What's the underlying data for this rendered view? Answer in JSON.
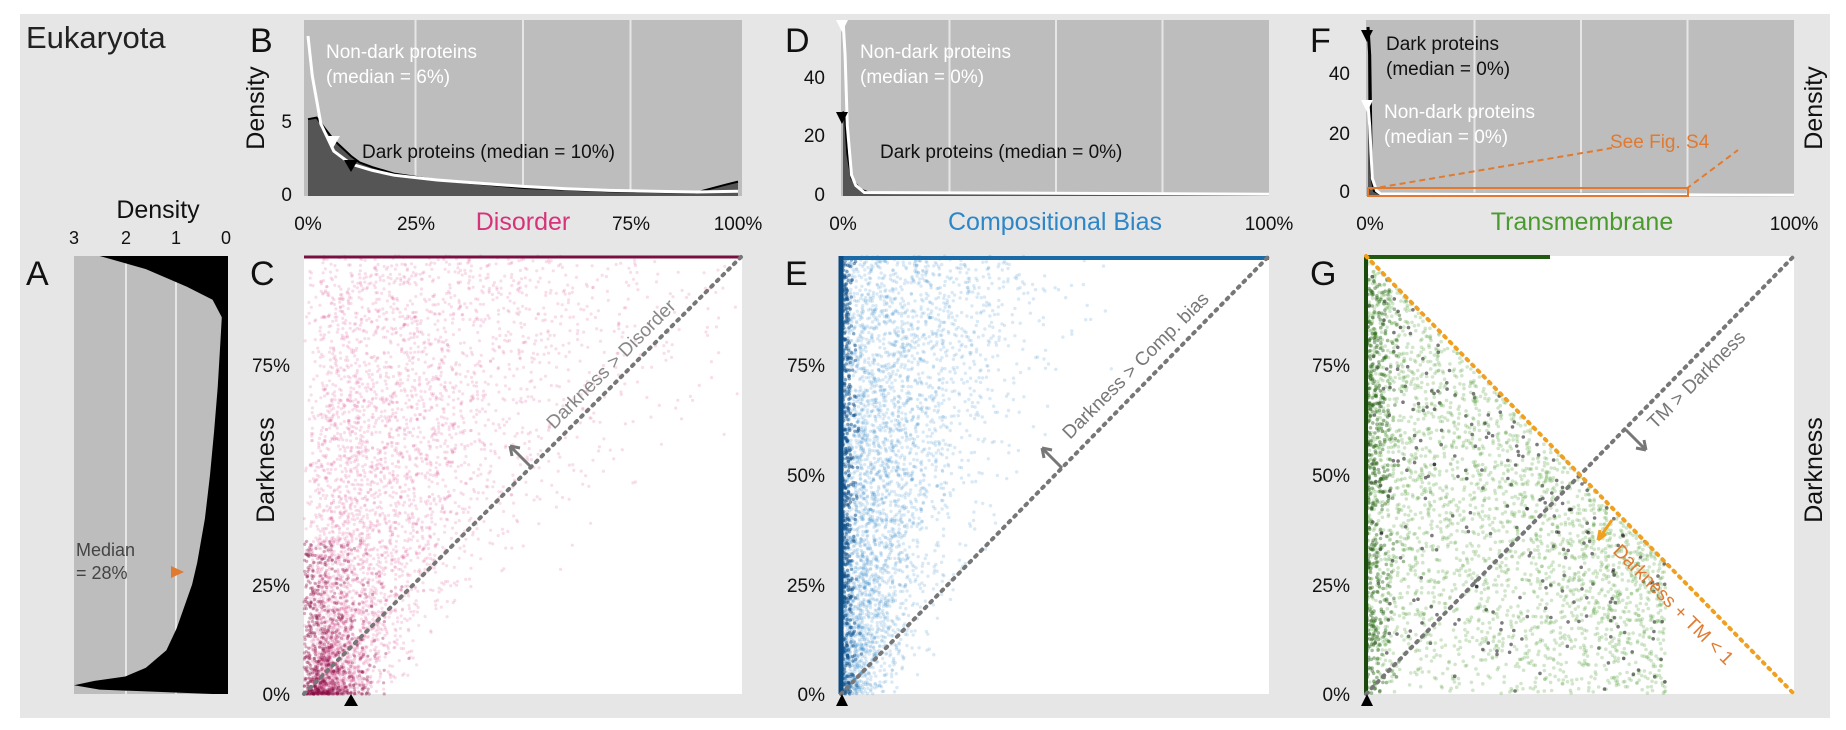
{
  "figure": {
    "title": "Eukaryota",
    "panel_labels": [
      "A",
      "B",
      "C",
      "D",
      "E",
      "F",
      "G"
    ],
    "y_title": "Darkness",
    "density_title": "Density",
    "colors": {
      "disorder": "#d6337a",
      "compbias": "#2d86c8",
      "transmembrane": "#4a9a2e",
      "annotation": "#e07a30",
      "panel_bg": "#bdbdbd",
      "figure_bg": "#e6e6e6"
    }
  },
  "chart_data": [
    {
      "id": "A",
      "type": "area",
      "orientation": "horizontal",
      "title": "Density",
      "xlim": [
        3,
        0
      ],
      "x_ticks": [
        "3",
        "2",
        "1",
        "0"
      ],
      "ylim": [
        0,
        1
      ],
      "y_ticks": [
        "0%",
        "25%",
        "50%",
        "75%"
      ],
      "annotation": "Median\n= 28%",
      "median": 0.28,
      "series": [
        {
          "darkness": [
            0,
            0.01,
            0.02,
            0.03,
            0.04,
            0.06,
            0.1,
            0.15,
            0.2,
            0.25,
            0.3,
            0.4,
            0.5,
            0.6,
            0.7,
            0.8,
            0.86,
            0.9,
            0.93,
            0.97,
            1
          ],
          "density": [
            0.3,
            2.5,
            3.0,
            2.6,
            2.0,
            1.6,
            1.2,
            1.0,
            0.85,
            0.7,
            0.6,
            0.45,
            0.35,
            0.27,
            0.2,
            0.15,
            0.12,
            0.3,
            0.8,
            1.6,
            2.5
          ]
        }
      ]
    },
    {
      "id": "B",
      "type": "area",
      "xlabel": "Disorder",
      "ylabel": "Density",
      "x_ticks": [
        "0%",
        "25%",
        "50%",
        "75%",
        "100%"
      ],
      "y_ticks": [
        "0",
        "5"
      ],
      "ylim": [
        0,
        11
      ],
      "annotations": [
        "Non-dark proteins\n(median = 6%)",
        "Dark proteins (median = 10%)"
      ],
      "medians": {
        "non_dark": 0.06,
        "dark": 0.1
      },
      "series": [
        {
          "name": "Non-dark proteins",
          "x": [
            0,
            0.01,
            0.03,
            0.06,
            0.1,
            0.15,
            0.2,
            0.3,
            0.4,
            0.5,
            0.6,
            0.7,
            0.8,
            0.9,
            1
          ],
          "y": [
            10.0,
            7.5,
            4.5,
            2.8,
            2.0,
            1.6,
            1.3,
            1.0,
            0.8,
            0.6,
            0.45,
            0.35,
            0.3,
            0.25,
            0.3
          ]
        },
        {
          "name": "Dark proteins",
          "x": [
            0,
            0.02,
            0.04,
            0.06,
            0.08,
            0.1,
            0.12,
            0.15,
            0.2,
            0.3,
            0.4,
            0.5,
            0.7,
            0.9,
            0.97,
            1
          ],
          "y": [
            4.8,
            4.9,
            4.2,
            3.5,
            3.0,
            2.5,
            2.1,
            1.8,
            1.4,
            1.0,
            0.75,
            0.5,
            0.3,
            0.2,
            0.7,
            0.9
          ]
        }
      ]
    },
    {
      "id": "C",
      "type": "scatter",
      "xlabel": "",
      "ylabel": "Darkness",
      "y_ticks": [
        "0%",
        "25%",
        "50%",
        "75%"
      ],
      "xlim": [
        0,
        1
      ],
      "ylim": [
        0,
        1
      ],
      "diagonal_label": "Darkness > Disorder",
      "series": [
        {
          "name": "Disorder",
          "distribution": "concentrated at low disorder and low darkness, fading toward high disorder"
        }
      ]
    },
    {
      "id": "D",
      "type": "area",
      "xlabel": "Compositional Bias",
      "x_ticks": [
        "0%",
        "25%",
        "50%",
        "75%",
        "100%"
      ],
      "y_ticks": [
        "0",
        "20",
        "40"
      ],
      "ylim": [
        0,
        50
      ],
      "annotations": [
        "Non-dark proteins\n(median = 0%)",
        "Dark proteins (median = 0%)"
      ],
      "medians": {
        "non_dark": 0.0,
        "dark": 0.0
      },
      "series": [
        {
          "name": "Non-dark proteins",
          "x": [
            0,
            0.005,
            0.01,
            0.02,
            0.03,
            0.05,
            1
          ],
          "y": [
            50,
            40,
            20,
            6,
            3,
            1,
            0.5
          ]
        },
        {
          "name": "Dark proteins",
          "x": [
            0,
            0.005,
            0.01,
            0.02,
            0.04,
            0.06,
            1
          ],
          "y": [
            24,
            22,
            12,
            5,
            2,
            1,
            0.5
          ]
        }
      ]
    },
    {
      "id": "E",
      "type": "scatter",
      "y_ticks": [
        "0%",
        "25%",
        "50%",
        "75%"
      ],
      "xlim": [
        0,
        1
      ],
      "ylim": [
        0,
        1
      ],
      "diagonal_label": "Darkness > Comp. bias",
      "series": [
        {
          "name": "Compositional Bias",
          "distribution": "dense vertical band at zero bias, sparse cloud up to 40%"
        }
      ]
    },
    {
      "id": "F",
      "type": "area",
      "xlabel": "Transmembrane",
      "ylabel": "Density",
      "x_ticks": [
        "0%",
        "100%"
      ],
      "y_ticks": [
        "0",
        "20",
        "40"
      ],
      "ylim": [
        0,
        50
      ],
      "annotations": [
        "Dark proteins\n(median = 0%)",
        "Non-dark proteins\n(median = 0%)",
        "See Fig. S4"
      ],
      "medians": {
        "non_dark": 0.0,
        "dark": 0.0
      },
      "series": [
        {
          "name": "Dark proteins",
          "x": [
            0,
            0.004,
            0.008,
            0.015,
            0.03,
            1
          ],
          "y": [
            48,
            40,
            6,
            1.5,
            0.6,
            0.3
          ]
        },
        {
          "name": "Non-dark proteins",
          "x": [
            0,
            0.004,
            0.01,
            0.02,
            0.03,
            1
          ],
          "y": [
            26,
            20,
            5,
            1.5,
            0.6,
            0.3
          ]
        }
      ]
    },
    {
      "id": "G",
      "type": "scatter",
      "ylabel": "Darkness",
      "y_ticks": [
        "0%",
        "25%",
        "50%",
        "75%"
      ],
      "xlim": [
        0,
        1
      ],
      "ylim": [
        0,
        1
      ],
      "diagonal_label": "TM > Darkness",
      "antidiagonal_label": "Darkness + TM < 1",
      "series": [
        {
          "name": "Transmembrane",
          "distribution": "points below the line Darkness + TM = 1, denser near low TM"
        }
      ]
    }
  ]
}
